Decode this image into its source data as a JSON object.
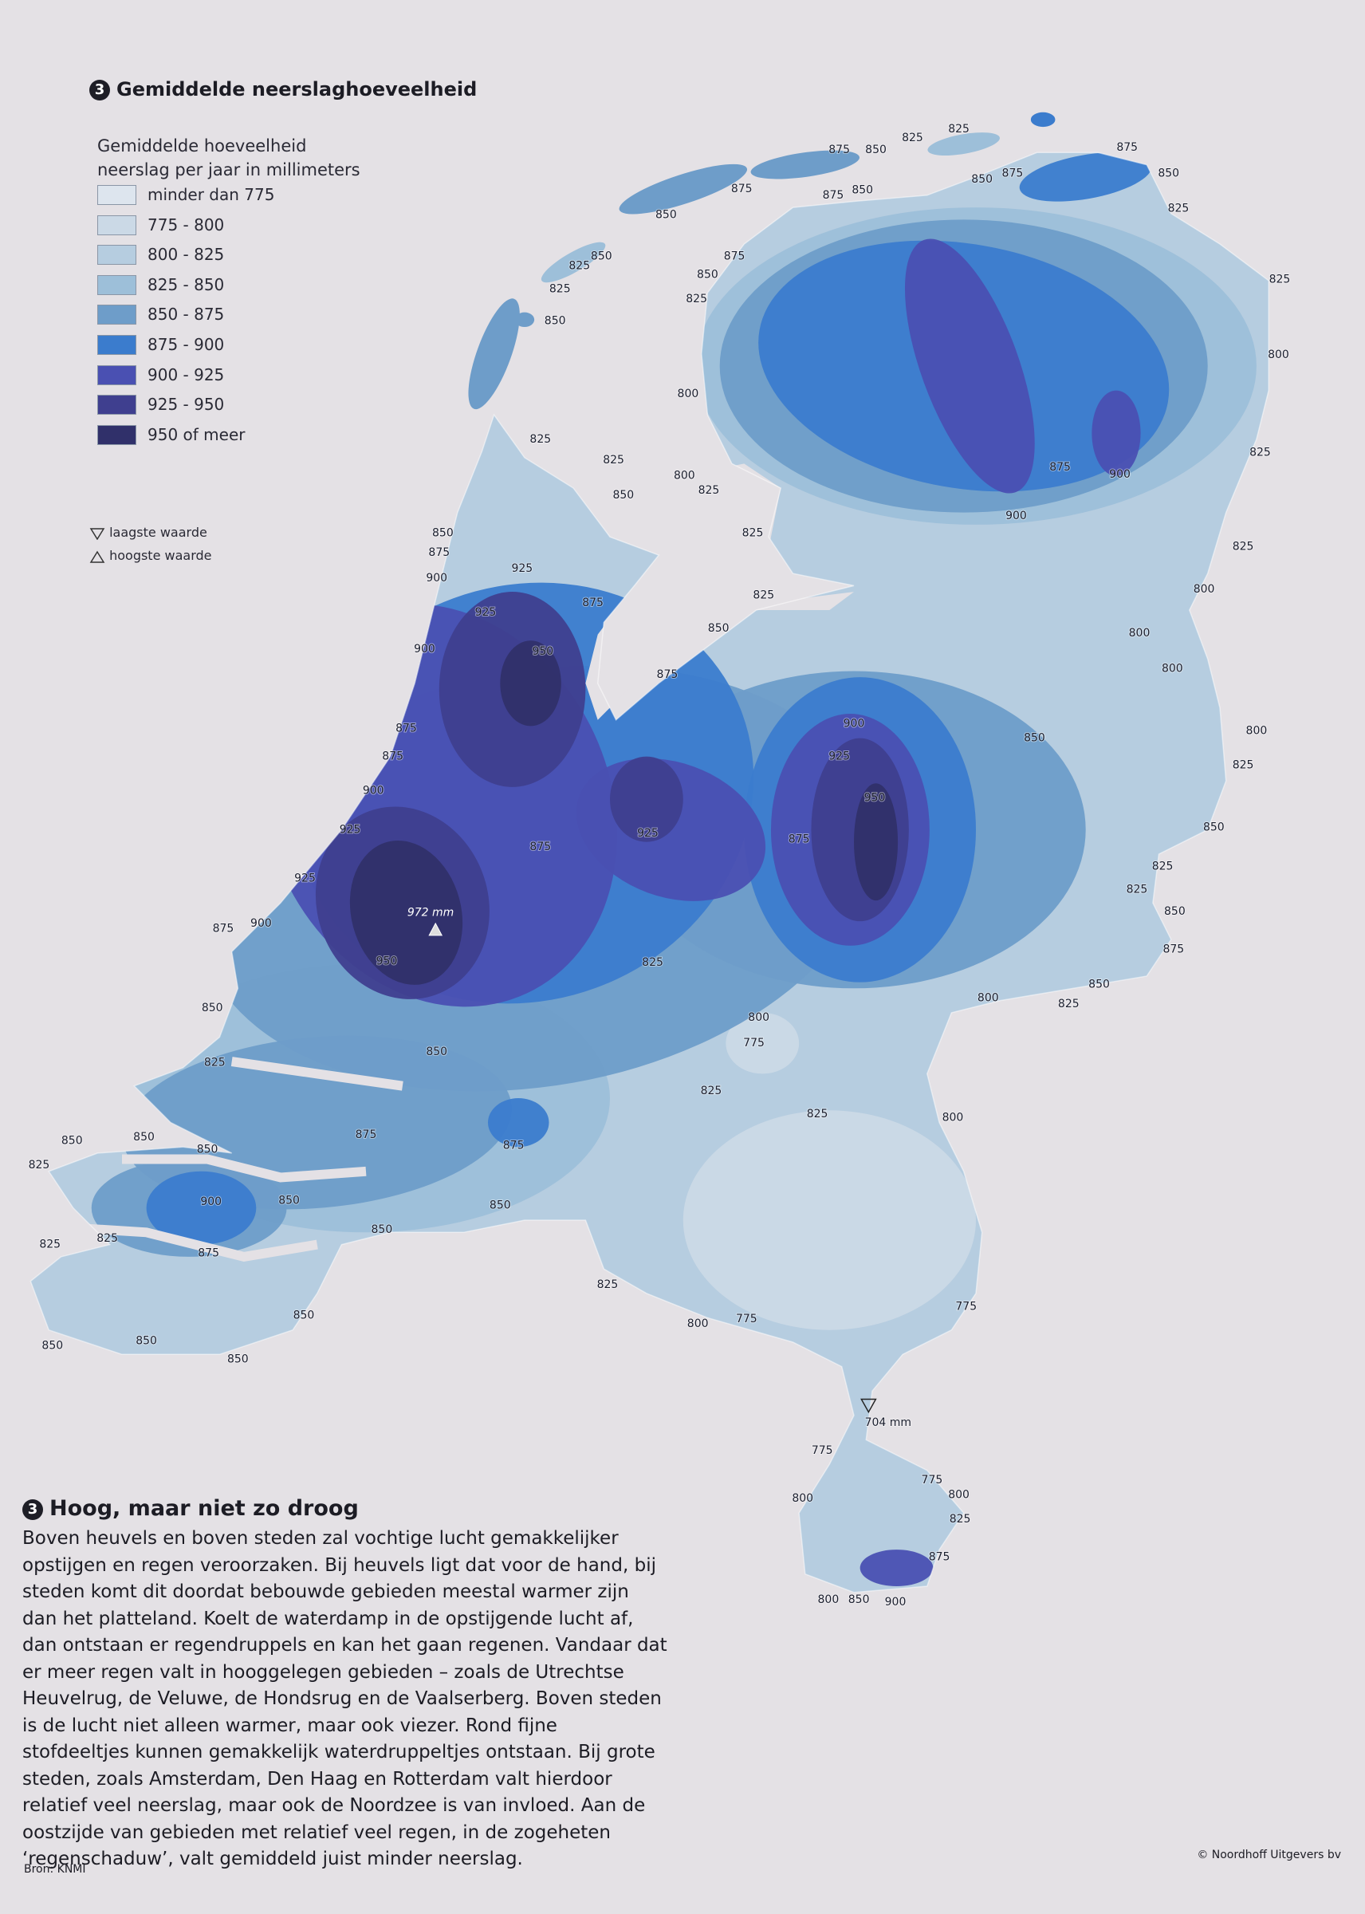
{
  "header": {
    "number": "3",
    "title": "Gemiddelde neerslaghoeveelheid"
  },
  "legend": {
    "title": "Gemiddelde hoeveelheid neerslag per jaar in millimeters",
    "items": [
      {
        "label": "minder dan 775",
        "color": "#dde5ee"
      },
      {
        "label": "775 - 800",
        "color": "#cbd9e6"
      },
      {
        "label": "800 - 825",
        "color": "#b6cde0"
      },
      {
        "label": "825 - 850",
        "color": "#9dbfd9"
      },
      {
        "label": "850 - 875",
        "color": "#6e9dc9"
      },
      {
        "label": "875 - 900",
        "color": "#3b7ccd"
      },
      {
        "label": "900 - 925",
        "color": "#4a50b2"
      },
      {
        "label": "925 - 950",
        "color": "#3f3f8f"
      },
      {
        "label": "950 of meer",
        "color": "#30306a"
      }
    ],
    "lowest": "laagste waarde",
    "highest": "hoogste waarde"
  },
  "highest_point": "972 mm",
  "lowest_point": "704 mm",
  "contour_labels": [
    875,
    850,
    825,
    825,
    875,
    850,
    875,
    850,
    850,
    875,
    875,
    850,
    825,
    875,
    850,
    825,
    850,
    825,
    825,
    850,
    825,
    800,
    800,
    825,
    825,
    850,
    800,
    825,
    825,
    875,
    900,
    900,
    825,
    825,
    800,
    850,
    875,
    900,
    925,
    925,
    875,
    825,
    850,
    800,
    800,
    900,
    950,
    875,
    850,
    800,
    825,
    875,
    875,
    900,
    925,
    950,
    900,
    925,
    925,
    875,
    875,
    850,
    825,
    925,
    825,
    850,
    875,
    900,
    950,
    875,
    825,
    850,
    825,
    800,
    850,
    800,
    775,
    850,
    825,
    825,
    825,
    800,
    875,
    875,
    850,
    850,
    850,
    825,
    900,
    850,
    850,
    850,
    825,
    825,
    875,
    825,
    800,
    775,
    775,
    850,
    850,
    850,
    850,
    775,
    775,
    800,
    800,
    825,
    875,
    800,
    850,
    900
  ],
  "article": {
    "number": "3",
    "title": "Hoog, maar niet zo droog",
    "text": "Boven heuvels en boven steden zal vochtige lucht gemakkelijker opstijgen en regen veroorzaken. Bij heuvels ligt dat voor de hand, bij steden komt dit doordat bebouwde gebieden meestal warmer zijn dan het platteland. Koelt de waterdamp in de opstijgende lucht af, dan ontstaan er regendruppels en kan het gaan regenen. Vandaar dat er meer regen valt in hooggelegen gebieden – zoals de Utrechtse Heuvelrug, de Veluwe, de Hondsrug en de Vaalserberg. Boven steden is de lucht niet alleen warmer, maar ook viezer. Rond fijne stofdeeltjes kunnen gemakkelijk waterdruppeltjes ontstaan. Bij grote steden, zoals Amsterdam, Den Haag en Rotterdam valt hierdoor relatief veel neerslag, maar ook de Noordzee is van invloed. Aan de oostzijde van gebieden met relatief veel regen, in de zogeheten ‘regenschaduw’, valt gemiddeld juist minder neerslag."
  },
  "source": "Bron: KNMI",
  "copyright": "© Noordhoff Uitgevers bv"
}
